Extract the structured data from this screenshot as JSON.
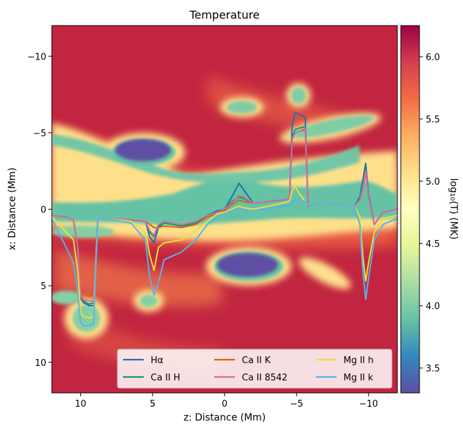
{
  "chart_data": {
    "type": "heatmap",
    "title": "Temperature",
    "xlabel": "z: Distance (Mm)",
    "ylabel": "x: Distance (Mm)",
    "xlim": [
      12,
      -12
    ],
    "ylim": [
      -12,
      12
    ],
    "x_ticks": [
      10,
      5,
      0,
      -5,
      -10
    ],
    "y_ticks": [
      -10,
      -5,
      0,
      5,
      10
    ],
    "x_tick_labels": [
      "10",
      "5",
      "0",
      "−5",
      "−10"
    ],
    "y_tick_labels": [
      "−10",
      "−5",
      "0",
      "5",
      "10"
    ],
    "colorbar": {
      "label": "log₁₀(T) (MK)",
      "range": [
        3.3,
        6.25
      ],
      "ticks": [
        3.5,
        4.0,
        4.5,
        5.0,
        5.5,
        6.0
      ],
      "tick_labels": [
        "3.5",
        "4.0",
        "4.5",
        "5.0",
        "5.5",
        "6.0"
      ],
      "colormap": "Spectral_r",
      "stops": [
        "#5e4fa2",
        "#3288bd",
        "#66c2a5",
        "#abdda4",
        "#e6f598",
        "#ffffbf",
        "#fee08b",
        "#fdae61",
        "#f46d43",
        "#d53e4f",
        "#9e0142"
      ]
    },
    "heatmap_regions": [
      {
        "kind": "cool_band",
        "z": [
          12,
          -12
        ],
        "x_center": 0.4,
        "log_t": 4.0
      },
      {
        "kind": "cool_blob",
        "z_center": 6.7,
        "x_center": -3.8,
        "log_t": 3.4
      },
      {
        "kind": "cool_blob",
        "z_center": -1.2,
        "x_center": 3.6,
        "log_t": 3.4
      },
      {
        "kind": "warm_blob",
        "z_center": -5.0,
        "x_center": -7.2,
        "log_t": 4.1
      },
      {
        "kind": "warm_blob",
        "z_center": 0.5,
        "x_center": -6.7,
        "log_t": 4.1
      },
      {
        "kind": "warm_blob",
        "z_center": 9.2,
        "x_center": 7.5,
        "log_t": 4.1
      },
      {
        "kind": "warm_blob",
        "z_center": 5.0,
        "x_center": 6.0,
        "log_t": 4.1
      }
    ],
    "legend": {
      "placement": "lower-right",
      "columns": 3
    },
    "series": [
      {
        "name": "Hα",
        "color": "#1f6fad",
        "z": [
          12,
          11,
          10.5,
          10.2,
          10,
          9.8,
          9.4,
          9.1,
          8.8,
          8,
          6.5,
          5.5,
          5.2,
          4.9,
          4.6,
          4.2,
          3,
          2,
          1.2,
          0.5,
          0,
          -0.5,
          -1,
          -1.3,
          -2,
          -3,
          -4,
          -4.5,
          -4.7,
          -4.9,
          -5.2,
          -5.6,
          -5.8,
          -6,
          -7,
          -8,
          -9,
          -9.4,
          -9.6,
          -9.8,
          -10,
          -10.4,
          -11,
          -12
        ],
        "x": [
          0.4,
          0.5,
          0.7,
          2.5,
          5.8,
          6.1,
          6.3,
          6.3,
          0.6,
          0.6,
          0.7,
          0.8,
          1.8,
          2.2,
          1.2,
          0.9,
          1.1,
          0.9,
          0.4,
          0.1,
          0.0,
          -0.8,
          -1.7,
          -1.3,
          -0.4,
          -0.5,
          -0.6,
          -0.7,
          -5.5,
          -6.3,
          -6.2,
          -6.0,
          -0.2,
          -0.3,
          -0.4,
          -0.3,
          -0.2,
          -0.8,
          -1.9,
          -3.0,
          -1.0,
          1.0,
          0.2,
          0.0
        ]
      },
      {
        "name": "Ca II H",
        "color": "#0e9a74",
        "z": [
          12,
          11,
          10.5,
          10.2,
          10,
          9.8,
          9.4,
          9.1,
          8.8,
          8,
          6.5,
          5.5,
          5.2,
          4.9,
          4.6,
          4.2,
          3,
          2,
          1.2,
          0.5,
          0,
          -0.5,
          -1,
          -1.3,
          -2,
          -3,
          -4,
          -4.5,
          -4.7,
          -4.9,
          -5.2,
          -5.6,
          -5.8,
          -6,
          -7,
          -8,
          -9,
          -9.4,
          -9.6,
          -9.8,
          -10,
          -10.4,
          -11,
          -12
        ],
        "x": [
          0.4,
          0.5,
          0.7,
          2.5,
          5.8,
          6.0,
          6.2,
          6.1,
          0.6,
          0.6,
          0.7,
          0.8,
          1.5,
          1.8,
          1.1,
          0.9,
          1.1,
          0.9,
          0.4,
          0.2,
          0.0,
          -0.5,
          -0.8,
          -0.7,
          -0.4,
          -0.5,
          -0.6,
          -0.7,
          -4.7,
          -5.2,
          -5.3,
          -5.4,
          -0.2,
          -0.3,
          -0.4,
          -0.3,
          -0.2,
          -0.7,
          -1.5,
          -2.6,
          -0.9,
          1.0,
          0.2,
          0.0
        ]
      },
      {
        "name": "Ca II K",
        "color": "#d9620b",
        "z": [
          12,
          11,
          10.5,
          10.2,
          10,
          9.8,
          9.4,
          9.1,
          8.8,
          8,
          6.5,
          5.5,
          5.2,
          4.9,
          4.6,
          4.2,
          3,
          2,
          1.2,
          0.5,
          0,
          -0.5,
          -1,
          -1.3,
          -2,
          -3,
          -4,
          -4.5,
          -4.7,
          -4.9,
          -5.2,
          -5.6,
          -5.8,
          -6,
          -7,
          -8,
          -9,
          -9.4,
          -9.6,
          -9.8,
          -10,
          -10.4,
          -11,
          -12
        ],
        "x": [
          0.4,
          0.5,
          0.7,
          2.5,
          5.4,
          5.5,
          5.7,
          5.6,
          0.6,
          0.6,
          0.7,
          0.8,
          1.0,
          1.2,
          1.2,
          1.1,
          1.2,
          1.0,
          0.5,
          0.3,
          0.1,
          -0.3,
          -0.6,
          -0.5,
          -0.4,
          -0.5,
          -0.6,
          -0.7,
          -4.6,
          -5.0,
          -5.1,
          -5.2,
          -0.2,
          -0.3,
          -0.4,
          -0.3,
          -0.2,
          -0.6,
          -1.3,
          -2.4,
          -0.8,
          1.0,
          0.2,
          0.0
        ]
      },
      {
        "name": "Ca II 8542",
        "color": "#d06fa3",
        "z": [
          12,
          11,
          10.5,
          10.2,
          10,
          9.8,
          9.4,
          9.1,
          8.8,
          8,
          6.5,
          5.5,
          5.2,
          4.9,
          4.6,
          4.2,
          3,
          2,
          1.2,
          0.5,
          0,
          -0.5,
          -1,
          -1.3,
          -2,
          -3,
          -4,
          -4.5,
          -4.7,
          -4.9,
          -5.2,
          -5.6,
          -5.8,
          -6,
          -7,
          -8,
          -9,
          -9.4,
          -9.6,
          -9.8,
          -10,
          -10.4,
          -11,
          -12
        ],
        "x": [
          0.4,
          0.5,
          0.7,
          2.5,
          5.7,
          5.9,
          6.0,
          6.0,
          0.6,
          0.6,
          0.7,
          0.8,
          1.4,
          1.7,
          1.0,
          0.8,
          1.0,
          0.8,
          0.4,
          0.2,
          0.0,
          -0.4,
          -0.9,
          -0.8,
          -0.4,
          -0.5,
          -0.6,
          -0.7,
          -4.6,
          -5.0,
          -5.1,
          -5.3,
          -0.2,
          -0.3,
          -0.4,
          -0.3,
          -0.2,
          -0.6,
          -1.4,
          -2.5,
          -0.8,
          1.0,
          0.2,
          0.0
        ]
      },
      {
        "name": "Mg II h",
        "color": "#e8e23a",
        "z": [
          12,
          11,
          10.5,
          10.2,
          10,
          9.8,
          9.4,
          9.1,
          8.8,
          8,
          6.5,
          5.5,
          5.2,
          4.9,
          4.6,
          4.2,
          3,
          2,
          1.2,
          0.5,
          0,
          -0.5,
          -1,
          -1.3,
          -2,
          -3,
          -4,
          -4.5,
          -4.7,
          -4.9,
          -5.2,
          -5.6,
          -5.8,
          -6,
          -7,
          -8,
          -9,
          -9.4,
          -9.6,
          -9.8,
          -10,
          -10.4,
          -11,
          -12
        ],
        "x": [
          0.5,
          1.5,
          2.0,
          4.0,
          6.8,
          7.0,
          7.1,
          7.0,
          0.6,
          0.6,
          0.8,
          1.5,
          3.0,
          4.0,
          2.5,
          2.2,
          2.0,
          1.4,
          0.8,
          0.3,
          0.2,
          0.0,
          -0.2,
          -0.1,
          0.0,
          -0.2,
          -0.4,
          -0.5,
          -1.2,
          -1.5,
          -1.0,
          -0.5,
          -0.3,
          -0.3,
          -0.4,
          -0.3,
          -0.2,
          0.5,
          3.0,
          4.7,
          3.5,
          1.5,
          0.6,
          0.4
        ]
      },
      {
        "name": "Mg II k",
        "color": "#56b4e9",
        "z": [
          12,
          11,
          10.5,
          10.2,
          10,
          9.8,
          9.4,
          9.1,
          8.8,
          8,
          6.5,
          5.5,
          5.2,
          4.9,
          4.6,
          4.2,
          3,
          2,
          1.2,
          0.5,
          0,
          -0.5,
          -1,
          -1.3,
          -2,
          -3,
          -4,
          -4.5,
          -4.7,
          -4.9,
          -5.2,
          -5.6,
          -5.8,
          -6,
          -7,
          -8,
          -9,
          -9.4,
          -9.6,
          -9.8,
          -10,
          -10.4,
          -11,
          -12
        ],
        "x": [
          0.6,
          2.5,
          3.5,
          5.5,
          7.4,
          7.6,
          7.6,
          7.5,
          0.6,
          0.6,
          0.9,
          2.0,
          4.5,
          5.6,
          4.8,
          3.3,
          2.8,
          2.0,
          1.0,
          0.5,
          0.3,
          0.1,
          -0.1,
          0.0,
          0.1,
          0.0,
          -0.2,
          -0.3,
          -0.5,
          -0.6,
          -0.6,
          -0.5,
          -0.3,
          -0.3,
          -0.4,
          -0.3,
          -0.2,
          1.0,
          4.0,
          5.9,
          4.5,
          2.0,
          1.0,
          0.6
        ]
      }
    ]
  }
}
